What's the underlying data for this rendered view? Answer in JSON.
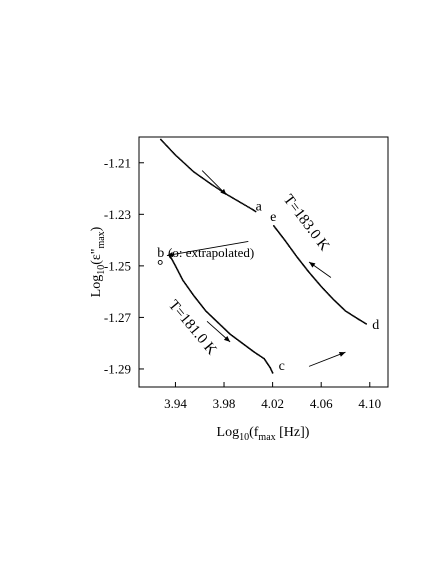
{
  "chart_data": {
    "type": "scatter",
    "xlabel": "Log10(fmax [Hz])",
    "ylabel": "Log10(ε\"max)",
    "xlim": [
      3.91,
      4.115
    ],
    "ylim": [
      -1.297,
      -1.2
    ],
    "x_ticks": [
      3.94,
      3.98,
      4.02,
      4.06,
      4.1
    ],
    "x_tick_labels": [
      "3.94",
      "3.98",
      "4.02",
      "4.06",
      "4.10"
    ],
    "y_ticks": [
      -1.21,
      -1.23,
      -1.25,
      -1.27,
      -1.29
    ],
    "y_tick_labels": [
      "-1.21",
      "-1.23",
      "-1.25",
      "-1.27",
      "-1.29"
    ],
    "grid": false,
    "point_labels": {
      "a": {
        "text": "a",
        "x": 4.006,
        "y": -1.2285
      },
      "b": {
        "text": "b",
        "x": 3.925,
        "y": -1.2465
      },
      "c": {
        "text": "c",
        "x": 4.025,
        "y": -1.2905
      },
      "d": {
        "text": "d",
        "x": 4.102,
        "y": -1.2745
      },
      "e": {
        "text": "e",
        "x": 4.018,
        "y": -1.2325
      }
    },
    "extrapolated_point": {
      "x": 3.925,
      "y": -1.2475
    },
    "annotations": {
      "upper_temperature": "T=183.0 K",
      "lower_temperature": "T=181.0 K",
      "extrapolated_note": "(o: extrapolated)"
    },
    "series": [
      {
        "segments": [
          {
            "points": [
              [
                3.928,
                -1.201
              ],
              [
                3.94,
                -1.207
              ],
              [
                3.955,
                -1.2135
              ],
              [
                3.97,
                -1.2185
              ],
              [
                3.983,
                -1.2225
              ],
              [
                3.995,
                -1.2258
              ],
              [
                4.003,
                -1.228
              ],
              [
                4.006,
                -1.2289
              ]
            ],
            "density": 13
          },
          {
            "points": [
              [
                4.021,
                -1.2345
              ],
              [
                4.03,
                -1.24
              ],
              [
                4.04,
                -1.2465
              ],
              [
                4.05,
                -1.2525
              ],
              [
                4.06,
                -1.258
              ],
              [
                4.07,
                -1.263
              ],
              [
                4.08,
                -1.2675
              ],
              [
                4.09,
                -1.2705
              ],
              [
                4.097,
                -1.2725
              ]
            ],
            "density": 14
          }
        ]
      },
      {
        "segments": [
          {
            "points": [
              [
                3.936,
                -1.2465
              ],
              [
                3.94,
                -1.25
              ],
              [
                3.946,
                -1.2555
              ],
              [
                3.955,
                -1.2615
              ],
              [
                3.965,
                -1.2675
              ],
              [
                3.975,
                -1.272
              ],
              [
                3.985,
                -1.2765
              ],
              [
                3.995,
                -1.28
              ],
              [
                4.005,
                -1.2835
              ],
              [
                4.013,
                -1.286
              ],
              [
                4.018,
                -1.2895
              ],
              [
                4.02,
                -1.2915
              ]
            ],
            "density": 14
          }
        ]
      }
    ],
    "arrows": [
      {
        "from": [
          3.962,
          -1.213
        ],
        "to": [
          3.982,
          -1.2225
        ]
      },
      {
        "from": [
          4.068,
          -1.2545
        ],
        "to": [
          4.05,
          -1.2485
        ]
      },
      {
        "from": [
          4.0,
          -1.2405
        ],
        "to": [
          3.933,
          -1.246
        ]
      },
      {
        "from": [
          3.966,
          -1.2715
        ],
        "to": [
          3.985,
          -1.2795
        ]
      },
      {
        "from": [
          4.05,
          -1.289
        ],
        "to": [
          4.08,
          -1.2835
        ]
      }
    ]
  }
}
